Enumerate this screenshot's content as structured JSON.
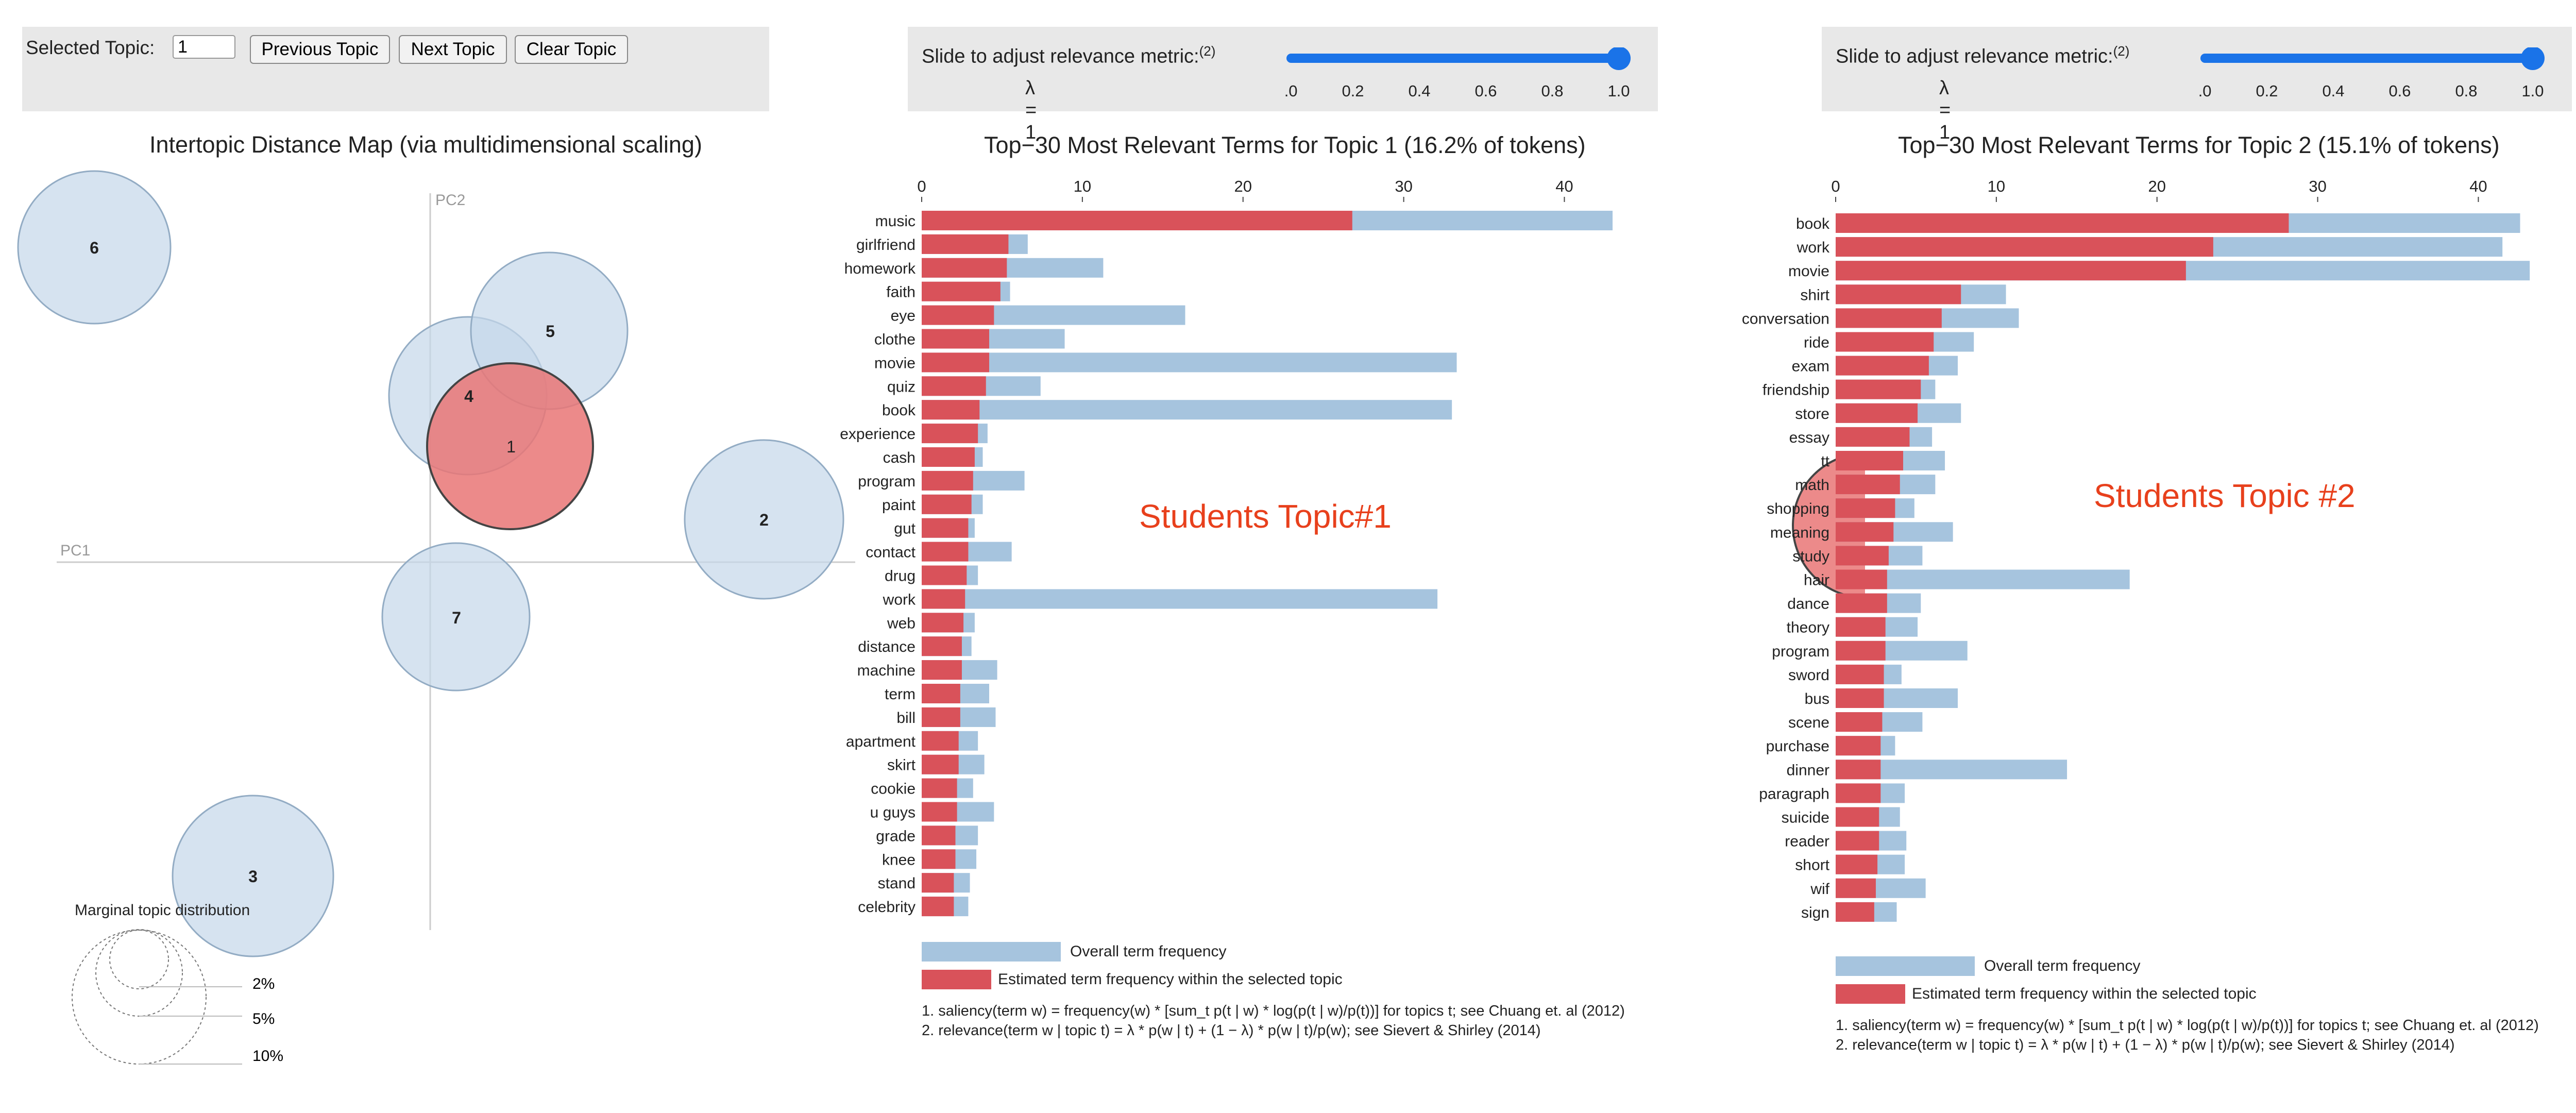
{
  "app": {
    "selected_topic_label": "Selected Topic:",
    "selected_topic_value": "1",
    "buttons": {
      "previous": "Previous Topic",
      "next": "Next Topic",
      "clear": "Clear Topic"
    },
    "colors": {
      "panel_bg": "#e8e8e8",
      "overall": "#a6c4de",
      "estimated": "#d9525a",
      "bubble": "#c5d7ea",
      "bubble_selected": "#e97676",
      "slider": "#1a73e8",
      "annotation": "#e8401c"
    }
  },
  "slider": {
    "label": "Slide to adjust relevance metric:",
    "superscript": "(2)",
    "lambda_label": "λ = 1",
    "ticks": [
      "0.0",
      "0.2",
      "0.4",
      "0.6",
      "0.8",
      "1.0"
    ],
    "value": 1.0
  },
  "map": {
    "title": "Intertopic Distance Map (via multidimensional scaling)",
    "axis_x_label": "PC1",
    "axis_y_label": "PC2",
    "topics": [
      "6",
      "5",
      "4",
      "1",
      "2",
      "7",
      "3"
    ],
    "selected_topic": "1",
    "marginal": {
      "title": "Marginal topic distribution",
      "labels": [
        "2%",
        "5%",
        "10%"
      ]
    }
  },
  "legend": {
    "overall": "Overall term frequency",
    "estimated": "Estimated term frequency within the selected topic",
    "footnote1": "1. saliency(term w) = frequency(w) * [sum_t p(t | w) * log(p(t | w)/p(t))] for topics t; see Chuang et. al (2012)",
    "footnote2": "2. relevance(term w | topic t) = λ * p(w | t) + (1 − λ) * p(w | t)/p(w); see Sievert & Shirley (2014)"
  },
  "annotations": {
    "topic1": "Students Topic#1",
    "topic2": "Students Topic #2"
  },
  "chart_data": [
    {
      "type": "bar",
      "orientation": "horizontal",
      "title": "Top−30 Most Relevant Terms for Topic 1 (16.2% of tokens)",
      "xlim": [
        0,
        43
      ],
      "xticks": [
        "0",
        "10",
        "20",
        "30",
        "40"
      ],
      "categories": [
        "music",
        "girlfriend",
        "homework",
        "faith",
        "eye",
        "clothe",
        "movie",
        "quiz",
        "book",
        "experience",
        "cash",
        "program",
        "paint",
        "gut",
        "contact",
        "drug",
        "work",
        "web",
        "distance",
        "machine",
        "term",
        "bill",
        "apartment",
        "skirt",
        "cookie",
        "u guys",
        "grade",
        "knee",
        "stand",
        "celebrity"
      ],
      "series": [
        {
          "name": "Overall term frequency",
          "values": [
            43,
            6.6,
            11.3,
            5.5,
            16.4,
            8.9,
            33.3,
            7.4,
            33,
            4.1,
            3.8,
            6.4,
            3.8,
            3.3,
            5.6,
            3.5,
            32.1,
            3.3,
            3.1,
            4.7,
            4.2,
            4.6,
            3.5,
            3.9,
            3.2,
            4.5,
            3.5,
            3.4,
            3.0,
            2.9
          ]
        },
        {
          "name": "Estimated term frequency within the selected topic",
          "values": [
            26.8,
            5.4,
            5.3,
            4.9,
            4.5,
            4.2,
            4.2,
            4.0,
            3.6,
            3.5,
            3.3,
            3.2,
            3.1,
            2.9,
            2.9,
            2.8,
            2.7,
            2.6,
            2.5,
            2.5,
            2.4,
            2.4,
            2.3,
            2.3,
            2.2,
            2.2,
            2.1,
            2.1,
            2.0,
            2.0
          ]
        }
      ]
    },
    {
      "type": "bar",
      "orientation": "horizontal",
      "title": "Top−30 Most Relevant Terms for Topic 2 (15.1% of tokens)",
      "xlim": [
        0,
        43
      ],
      "xticks": [
        "0",
        "10",
        "20",
        "30",
        "40"
      ],
      "categories": [
        "book",
        "work",
        "movie",
        "shirt",
        "conversation",
        "ride",
        "exam",
        "friendship",
        "store",
        "essay",
        "tt",
        "math",
        "shopping",
        "meaning",
        "study",
        "hair",
        "dance",
        "theory",
        "program",
        "sword",
        "bus",
        "scene",
        "purchase",
        "dinner",
        "paragraph",
        "suicide",
        "reader",
        "short",
        "wif",
        "sign"
      ],
      "series": [
        {
          "name": "Overall term frequency",
          "values": [
            42.6,
            41.5,
            43.2,
            10.6,
            11.4,
            8.6,
            7.6,
            6.2,
            7.8,
            6.0,
            6.8,
            6.2,
            4.9,
            7.3,
            5.4,
            18.3,
            5.3,
            5.1,
            8.2,
            4.1,
            7.6,
            5.4,
            3.7,
            14.4,
            4.3,
            4.0,
            4.4,
            4.3,
            5.6,
            3.8
          ]
        },
        {
          "name": "Estimated term frequency within the selected topic",
          "values": [
            28.2,
            23.5,
            21.8,
            7.8,
            6.6,
            6.1,
            5.8,
            5.3,
            5.1,
            4.6,
            4.2,
            4.0,
            3.7,
            3.6,
            3.3,
            3.2,
            3.2,
            3.1,
            3.1,
            3.0,
            3.0,
            2.9,
            2.8,
            2.8,
            2.8,
            2.7,
            2.7,
            2.6,
            2.5,
            2.4
          ]
        }
      ]
    }
  ]
}
